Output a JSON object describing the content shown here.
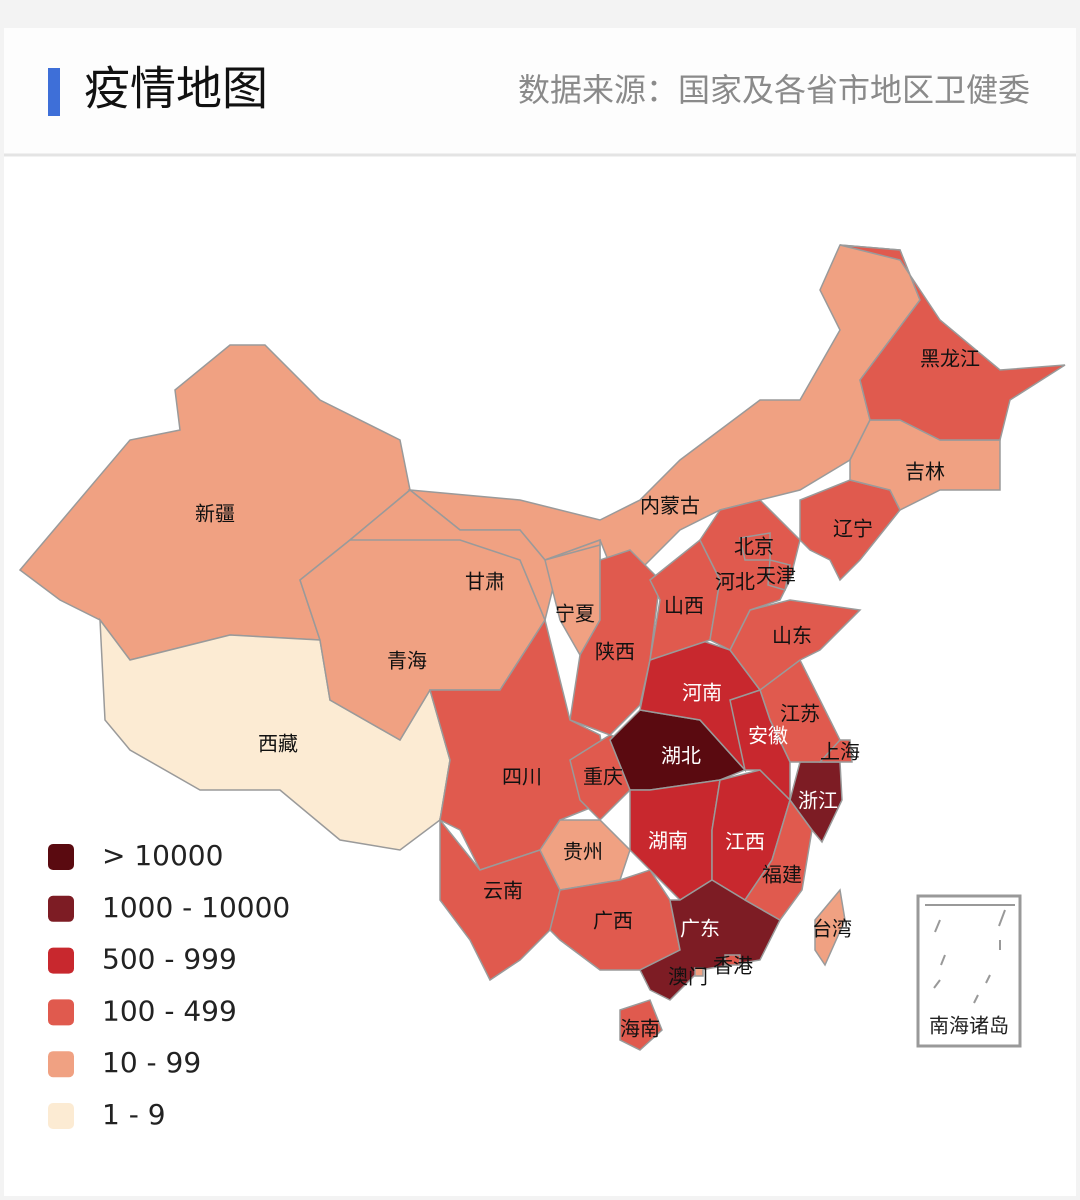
{
  "header": {
    "title": "疫情地图",
    "source": "数据来源：国家及各省市地区卫健委"
  },
  "legend": [
    {
      "label": "> 10000",
      "color": "#5a0a10"
    },
    {
      "label": "1000 - 10000",
      "color": "#7d1c24"
    },
    {
      "label": "500 - 999",
      "color": "#c8282e"
    },
    {
      "label": "100 - 499",
      "color": "#e05a4e"
    },
    {
      "label": "10 - 99",
      "color": "#f0a182"
    },
    {
      "label": "1 - 9",
      "color": "#fcebd3"
    }
  ],
  "provinces": [
    {
      "name": "新疆",
      "color": "#f0a182"
    },
    {
      "name": "西藏",
      "color": "#fcebd3"
    },
    {
      "name": "内蒙古",
      "color": "#f0a182"
    },
    {
      "name": "青海",
      "color": "#f0a182"
    },
    {
      "name": "甘肃",
      "color": "#f0a182"
    },
    {
      "name": "宁夏",
      "color": "#f0a182"
    },
    {
      "name": "陕西",
      "color": "#e05a4e"
    },
    {
      "name": "四川",
      "color": "#e05a4e"
    },
    {
      "name": "重庆",
      "color": "#e05a4e"
    },
    {
      "name": "云南",
      "color": "#e05a4e"
    },
    {
      "name": "贵州",
      "color": "#f0a182"
    },
    {
      "name": "广西",
      "color": "#e05a4e"
    },
    {
      "name": "湖北",
      "color": "#5a0a10"
    },
    {
      "name": "湖南",
      "color": "#c8282e"
    },
    {
      "name": "江西",
      "color": "#c8282e"
    },
    {
      "name": "广东",
      "color": "#7d1c24"
    },
    {
      "name": "海南",
      "color": "#e05a4e"
    },
    {
      "name": "福建",
      "color": "#e05a4e"
    },
    {
      "name": "浙江",
      "color": "#7d1c24"
    },
    {
      "name": "上海",
      "color": "#e05a4e"
    },
    {
      "name": "江苏",
      "color": "#e05a4e"
    },
    {
      "name": "安徽",
      "color": "#c8282e"
    },
    {
      "name": "河南",
      "color": "#c8282e"
    },
    {
      "name": "山东",
      "color": "#e05a4e"
    },
    {
      "name": "山西",
      "color": "#e05a4e"
    },
    {
      "name": "河北",
      "color": "#e05a4e"
    },
    {
      "name": "北京",
      "color": "#e05a4e"
    },
    {
      "name": "天津",
      "color": "#e05a4e"
    },
    {
      "name": "辽宁",
      "color": "#e05a4e"
    },
    {
      "name": "吉林",
      "color": "#f0a182"
    },
    {
      "name": "黑龙江",
      "color": "#e05a4e"
    },
    {
      "name": "台湾",
      "color": "#f0a182"
    },
    {
      "name": "香港",
      "color": "#e05a4e"
    },
    {
      "name": "澳门",
      "color": "#f0a182"
    }
  ],
  "inset": {
    "label": "南海诸岛"
  }
}
